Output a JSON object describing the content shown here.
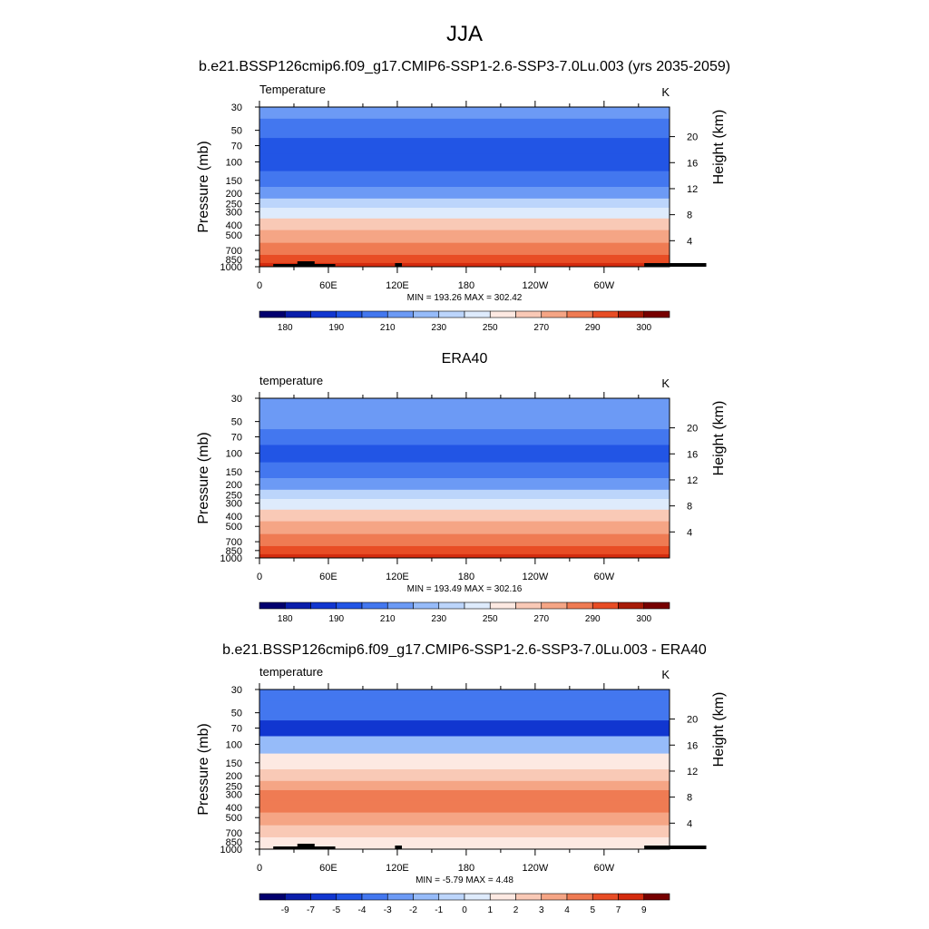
{
  "figure": {
    "title": "JJA",
    "subtitle": "b.e21.BSSP126cmip6.f09_g17.CMIP6-SSP1-2.6-SSP3-7.0Lu.003 (yrs 2035-2059)"
  },
  "palette": [
    "#02006e",
    "#0a1eab",
    "#1136d0",
    "#2255e5",
    "#4377ef",
    "#6c9af5",
    "#96bbf9",
    "#bcd5fb",
    "#deebfc",
    "#fde9e2",
    "#f9c9b6",
    "#f5a585",
    "#ef7b53",
    "#e84d25",
    "#d42b0e",
    "#a81b07",
    "#770000"
  ],
  "x_ticks": [
    "0",
    "60E",
    "120E",
    "180",
    "120W",
    "60W"
  ],
  "x_tick_lons": [
    0,
    60,
    120,
    180,
    240,
    300
  ],
  "pressure_ticks": [
    "30",
    "50",
    "70",
    "100",
    "150",
    "200",
    "250",
    "300",
    "400",
    "500",
    "700",
    "850",
    "1000"
  ],
  "pressure_values": [
    30,
    50,
    70,
    100,
    150,
    200,
    250,
    300,
    400,
    500,
    700,
    850,
    1000
  ],
  "height_ticks": [
    "20",
    "16",
    "12",
    "8",
    "4"
  ],
  "height_values_km": [
    20,
    16,
    12,
    8,
    4
  ],
  "y_label_left": "Pressure (mb)",
  "y_label_right": "Height (km)",
  "chart_data": [
    {
      "type": "heatmap",
      "panel_title": "",
      "field": "Temperature",
      "units": "K",
      "stats": "MIN = 193.26  MAX = 302.42",
      "min": 193.26,
      "max": 302.42,
      "colorbar_labels": [
        "180",
        "190",
        "210",
        "230",
        "250",
        "270",
        "290",
        "300"
      ],
      "levels": [
        30,
        50,
        70,
        100,
        150,
        200,
        250,
        300,
        400,
        500,
        700,
        850,
        1000
      ],
      "band_colors_by_level": [
        5,
        4,
        3,
        3,
        4,
        5,
        7,
        8,
        10,
        11,
        12,
        13,
        14
      ],
      "ylim": [
        30,
        1000
      ],
      "xlim": [
        0,
        357
      ],
      "topography": true
    },
    {
      "type": "heatmap",
      "panel_title": "ERA40",
      "field": "temperature",
      "units": "K",
      "stats": "MIN = 193.49  MAX = 302.16",
      "min": 193.49,
      "max": 302.16,
      "colorbar_labels": [
        "180",
        "190",
        "210",
        "230",
        "250",
        "270",
        "290",
        "300"
      ],
      "levels": [
        30,
        50,
        70,
        100,
        150,
        200,
        250,
        300,
        400,
        500,
        700,
        850,
        1000
      ],
      "band_colors_by_level": [
        5,
        5,
        4,
        3,
        4,
        5,
        7,
        8,
        10,
        11,
        12,
        13,
        14
      ],
      "ylim": [
        30,
        1000
      ],
      "xlim": [
        0,
        357
      ],
      "topography": false
    },
    {
      "type": "heatmap",
      "panel_title": "b.e21.BSSP126cmip6.f09_g17.CMIP6-SSP1-2.6-SSP3-7.0Lu.003 - ERA40",
      "field": "temperature",
      "units": "K",
      "stats": "MIN =  -5.79  MAX =   4.48",
      "min": -5.79,
      "max": 4.48,
      "colorbar_labels": [
        "-9",
        "-7",
        "-5",
        "-4",
        "-3",
        "-2",
        "-1",
        "0",
        "1",
        "2",
        "3",
        "4",
        "5",
        "7",
        "9"
      ],
      "levels": [
        30,
        50,
        70,
        100,
        150,
        200,
        250,
        300,
        400,
        500,
        700,
        850,
        1000
      ],
      "band_colors_by_level": [
        4,
        4,
        2,
        6,
        9,
        10,
        11,
        12,
        12,
        11,
        10,
        9,
        9
      ],
      "ylim": [
        30,
        1000
      ],
      "xlim": [
        0,
        357
      ],
      "topography": true
    }
  ]
}
